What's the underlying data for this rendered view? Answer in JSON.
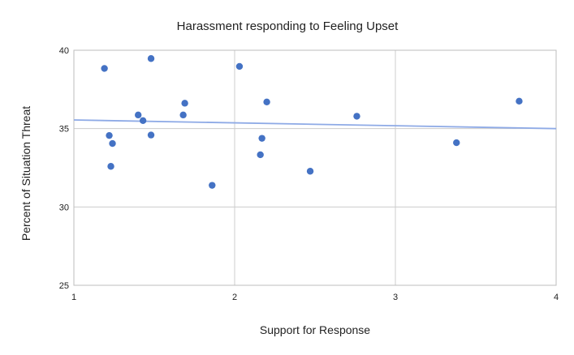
{
  "chart_data": {
    "type": "scatter",
    "title": "Harassment responding to Feeling Upset",
    "xlabel": "Support for Response",
    "ylabel": "Percent of Situation Threat",
    "xlim": [
      1,
      4
    ],
    "ylim": [
      25,
      40
    ],
    "xticks": [
      "1",
      "2",
      "3",
      "4"
    ],
    "yticks": [
      "25",
      "30",
      "35",
      "40"
    ],
    "grid": true,
    "legend": "none",
    "colors": {
      "points": "#4472c4",
      "trendline": "#8eaae6"
    },
    "points": [
      {
        "x": 1.19,
        "y": 38.84
      },
      {
        "x": 1.48,
        "y": 39.47
      },
      {
        "x": 2.03,
        "y": 38.97
      },
      {
        "x": 1.4,
        "y": 35.87
      },
      {
        "x": 1.43,
        "y": 35.51
      },
      {
        "x": 1.69,
        "y": 36.62
      },
      {
        "x": 1.68,
        "y": 35.87
      },
      {
        "x": 2.2,
        "y": 36.7
      },
      {
        "x": 1.22,
        "y": 34.56
      },
      {
        "x": 1.24,
        "y": 34.05
      },
      {
        "x": 1.48,
        "y": 34.59
      },
      {
        "x": 2.17,
        "y": 34.38
      },
      {
        "x": 2.16,
        "y": 33.33
      },
      {
        "x": 1.23,
        "y": 32.59
      },
      {
        "x": 2.47,
        "y": 32.28
      },
      {
        "x": 1.86,
        "y": 31.38
      },
      {
        "x": 2.76,
        "y": 35.79
      },
      {
        "x": 3.38,
        "y": 34.1
      },
      {
        "x": 3.77,
        "y": 36.75
      }
    ],
    "trendline": {
      "x": [
        1,
        4
      ],
      "y": [
        35.55,
        35.0
      ]
    }
  }
}
